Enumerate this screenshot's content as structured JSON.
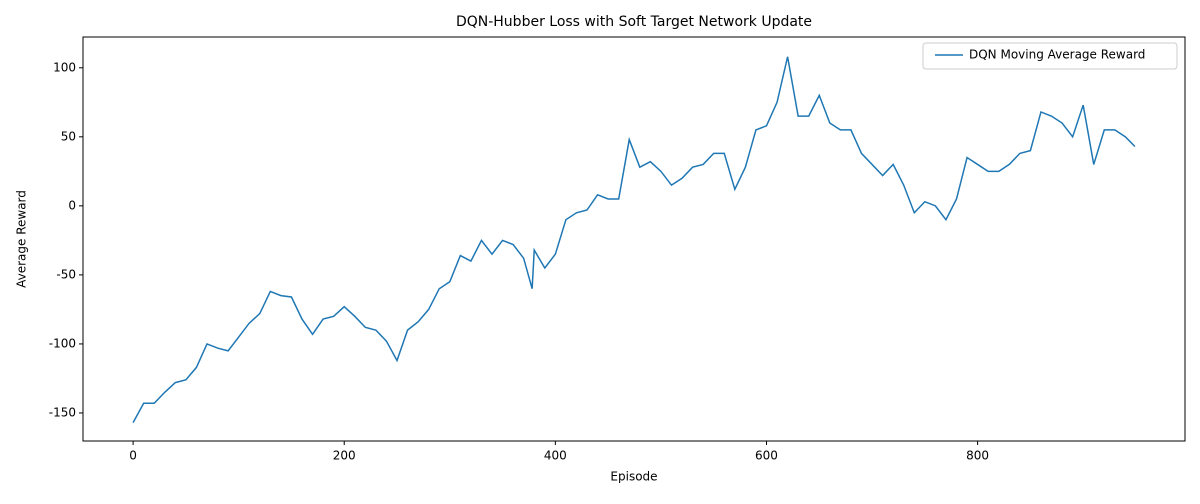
{
  "chart_data": {
    "type": "line",
    "title": "DQN-Hubber Loss with Soft Target Network Update",
    "x_label": "Episode",
    "y_label": "Average Reward",
    "x": [
      0,
      10,
      20,
      30,
      40,
      50,
      60,
      70,
      80,
      90,
      100,
      110,
      120,
      130,
      140,
      150,
      160,
      170,
      180,
      190,
      200,
      210,
      220,
      230,
      240,
      250,
      260,
      270,
      280,
      290,
      300,
      310,
      320,
      330,
      340,
      350,
      360,
      370,
      378,
      380,
      390,
      400,
      410,
      420,
      430,
      440,
      450,
      460,
      470,
      480,
      490,
      500,
      510,
      520,
      530,
      540,
      550,
      560,
      570,
      580,
      590,
      600,
      610,
      620,
      630,
      640,
      650,
      660,
      670,
      680,
      690,
      700,
      710,
      720,
      730,
      740,
      750,
      760,
      770,
      780,
      790,
      800,
      810,
      820,
      830,
      840,
      850,
      860,
      870,
      880,
      890,
      900,
      910,
      920,
      930,
      940,
      949
    ],
    "series": [
      {
        "name": "DQN Moving Average Reward",
        "color": "#1f77b4",
        "values": [
          -157,
          -143,
          -143,
          -135,
          -128,
          -126,
          -117,
          -100,
          -103,
          -105,
          -95,
          -85,
          -78,
          -62,
          -65,
          -66,
          -82,
          -93,
          -82,
          -80,
          -73,
          -80,
          -88,
          -90,
          -98,
          -112,
          -90,
          -84,
          -75,
          -60,
          -55,
          -36,
          -40,
          -25,
          -35,
          -25,
          -28,
          -38,
          -60,
          -32,
          -45,
          -35,
          -10,
          -5,
          -3,
          8,
          5,
          5,
          48,
          28,
          32,
          25,
          15,
          20,
          28,
          30,
          38,
          38,
          12,
          28,
          55,
          58,
          75,
          108,
          65,
          65,
          80,
          60,
          55,
          55,
          38,
          30,
          22,
          30,
          15,
          -5,
          3,
          0,
          -10,
          5,
          35,
          30,
          25,
          25,
          30,
          38,
          40,
          68,
          65,
          60,
          50,
          73,
          30,
          55,
          55,
          50,
          43
        ]
      }
    ],
    "xlim": [
      -47.45,
      996.45
    ],
    "ylim": [
      -170.3,
      122.3
    ],
    "xticks": [
      0,
      200,
      400,
      600,
      800
    ],
    "yticks": [
      -150,
      -100,
      -50,
      0,
      50,
      100
    ],
    "grid": false,
    "legend": "upper right"
  }
}
